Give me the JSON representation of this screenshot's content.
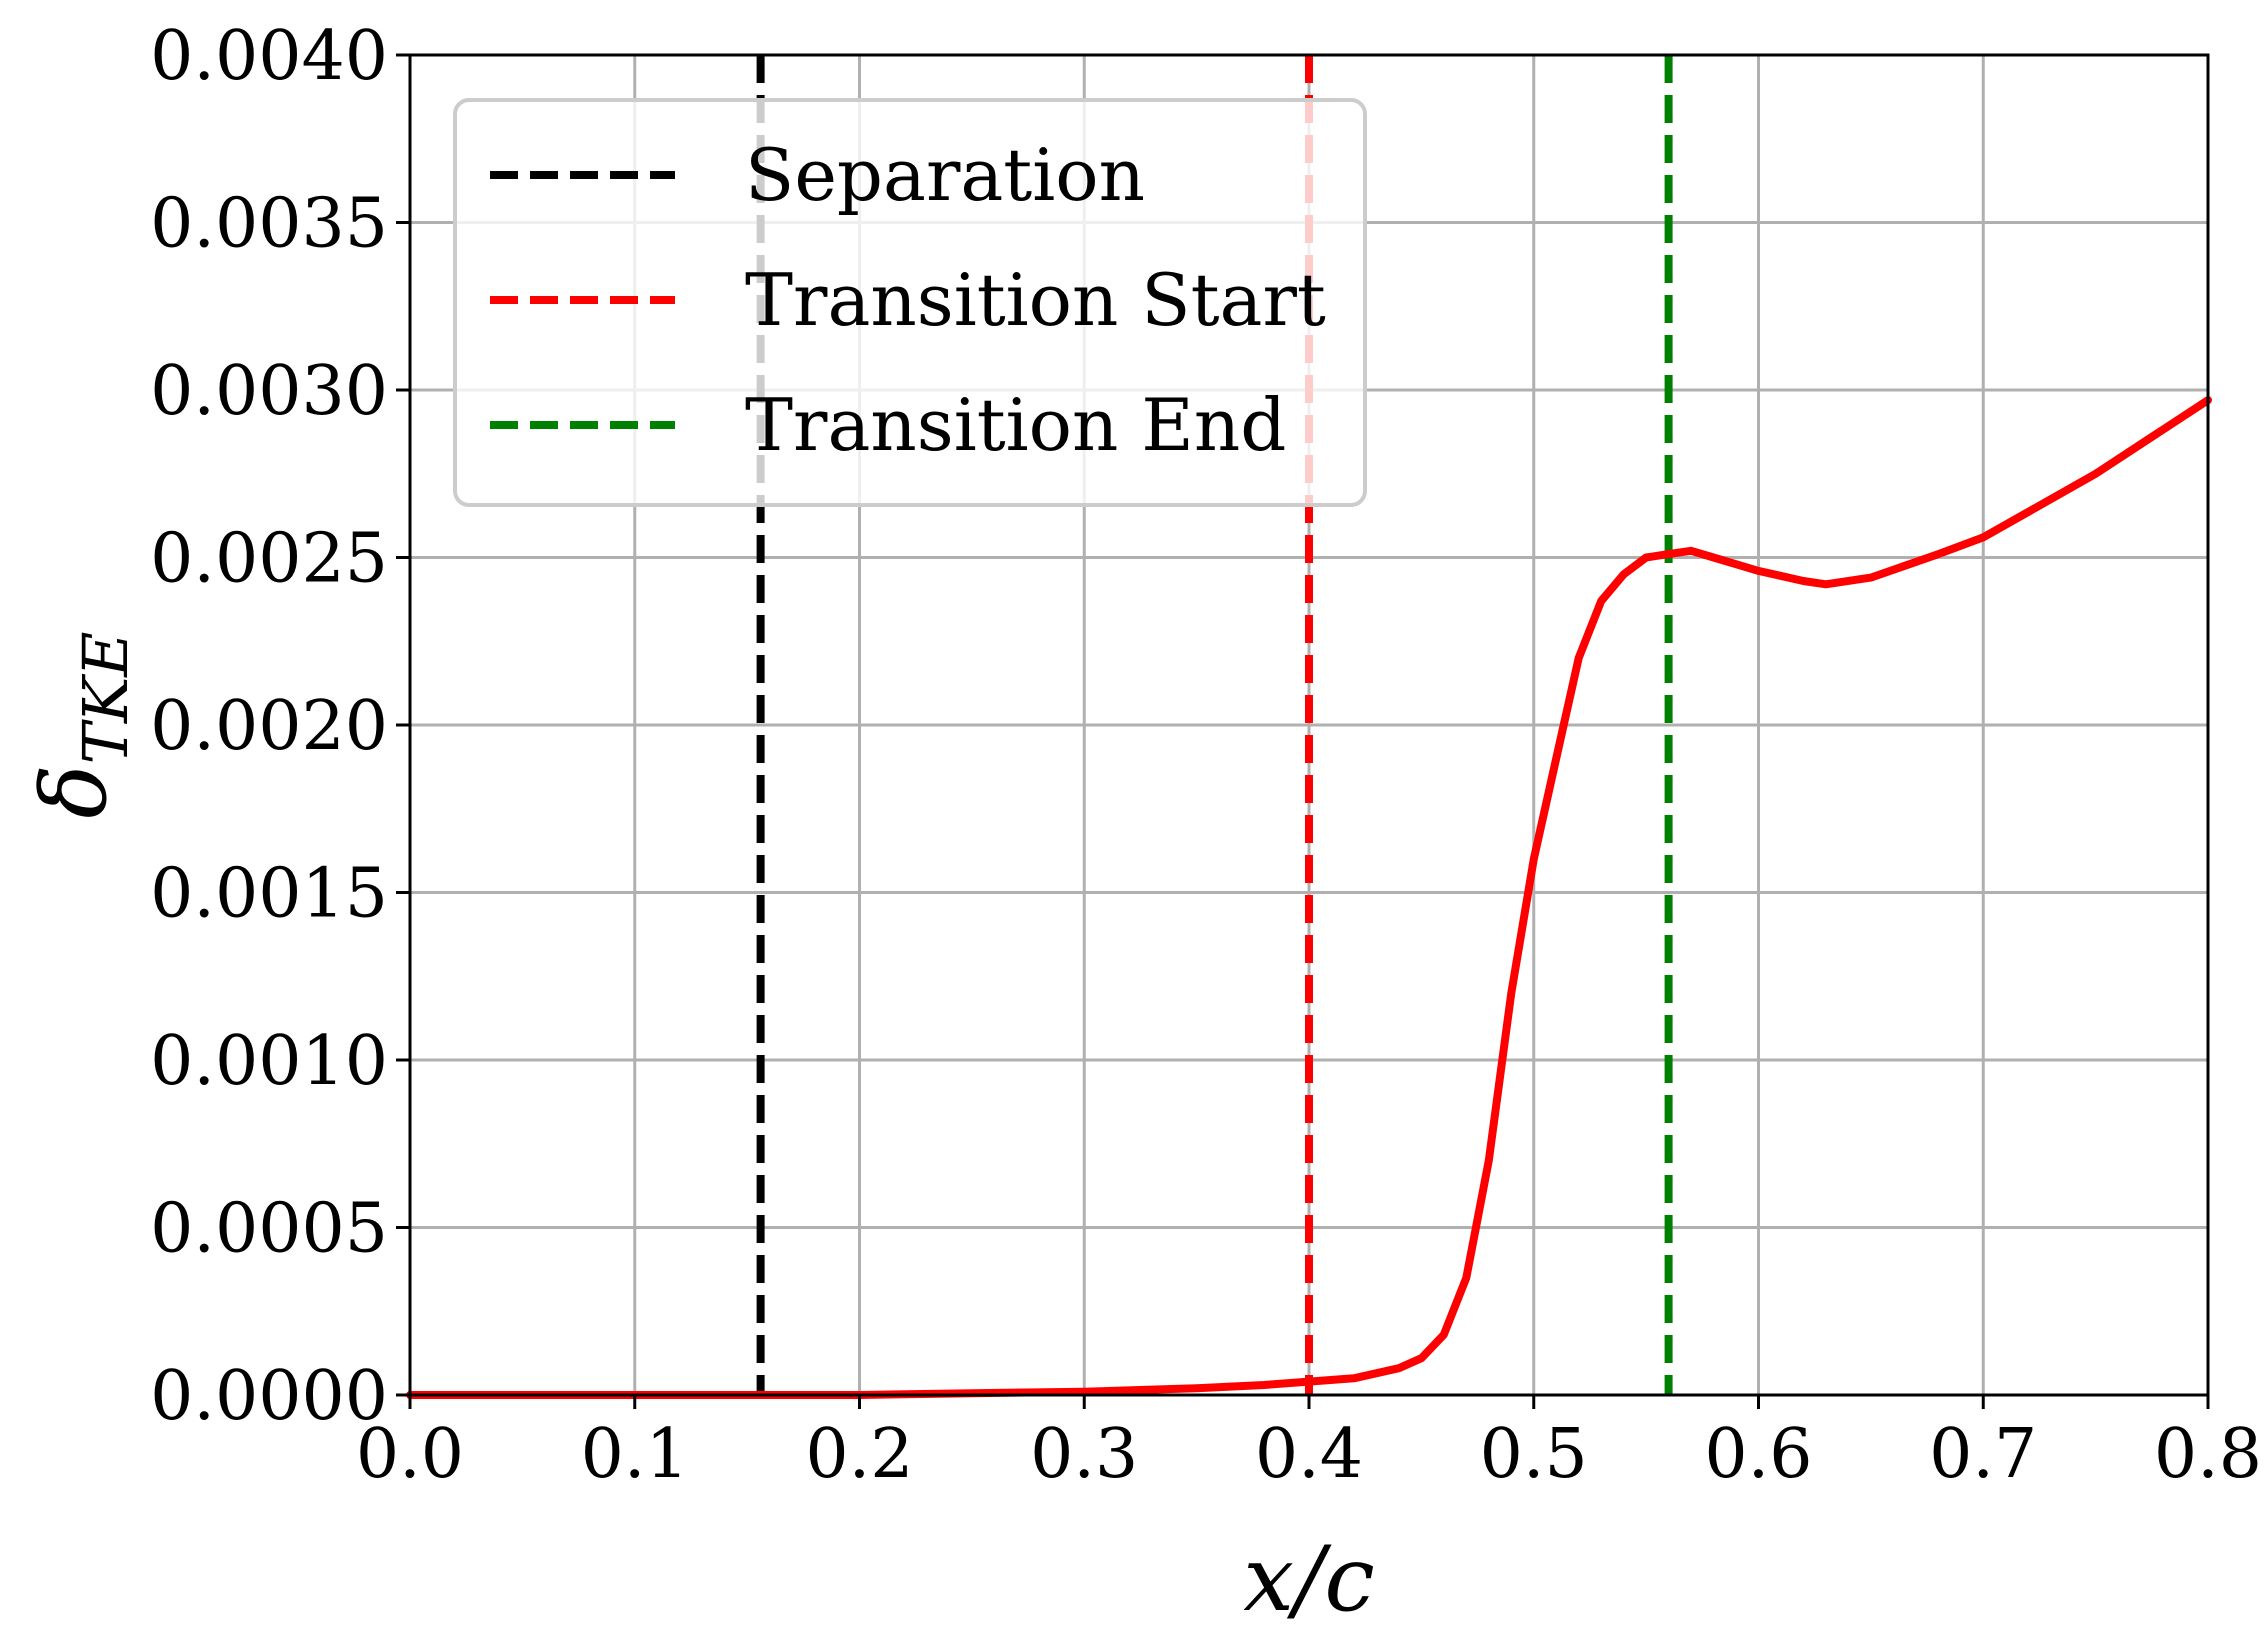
{
  "chart_data": {
    "type": "line",
    "xlabel": "x/c",
    "ylabel": {
      "main": "δ",
      "sub": "TKE"
    },
    "xlim": [
      0.0,
      0.8
    ],
    "ylim": [
      0.0,
      0.004
    ],
    "grid": true,
    "legend_position": "top-left",
    "x_ticks": [
      "0.0",
      "0.1",
      "0.2",
      "0.3",
      "0.4",
      "0.5",
      "0.6",
      "0.7",
      "0.8"
    ],
    "y_ticks": [
      "0.0000",
      "0.0005",
      "0.0010",
      "0.0015",
      "0.0020",
      "0.0025",
      "0.0030",
      "0.0035",
      "0.0040"
    ],
    "vlines": [
      {
        "name": "Separation",
        "x": 0.156,
        "color": "#000000"
      },
      {
        "name": "Transition Start",
        "x": 0.4,
        "color": "#ff0000"
      },
      {
        "name": "Transition End",
        "x": 0.56,
        "color": "#008000"
      }
    ],
    "series": [
      {
        "color": "#ff0000",
        "x": [
          0.0,
          0.05,
          0.1,
          0.15,
          0.2,
          0.25,
          0.3,
          0.35,
          0.38,
          0.4,
          0.42,
          0.44,
          0.45,
          0.46,
          0.47,
          0.48,
          0.49,
          0.5,
          0.51,
          0.52,
          0.53,
          0.54,
          0.55,
          0.56,
          0.57,
          0.58,
          0.59,
          0.6,
          0.62,
          0.63,
          0.65,
          0.68,
          0.7,
          0.75,
          0.8
        ],
        "y": [
          0.0,
          0.0,
          0.0,
          0.0,
          0.0,
          5e-06,
          1e-05,
          2e-05,
          3e-05,
          4e-05,
          5e-05,
          8e-05,
          0.00011,
          0.00018,
          0.00035,
          0.0007,
          0.0012,
          0.0016,
          0.0019,
          0.0022,
          0.00237,
          0.00245,
          0.0025,
          0.00251,
          0.00252,
          0.0025,
          0.00248,
          0.00246,
          0.00243,
          0.00242,
          0.00244,
          0.00251,
          0.00256,
          0.00275,
          0.00297
        ]
      }
    ]
  }
}
